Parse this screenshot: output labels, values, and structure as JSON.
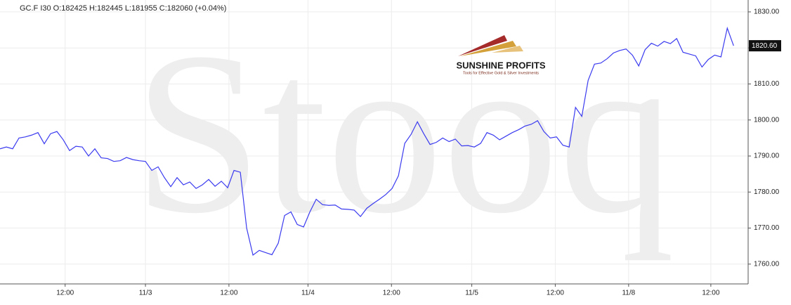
{
  "chart_data": {
    "type": "line",
    "title": "GC.F  I30  O:182425  H:182445  L:181955  C:182060  (+0.04%)",
    "watermark": "Stooq",
    "logo": {
      "name": "SUNSHINE PROFITS",
      "tagline": "Tools for Effective Gold & Silver Investments"
    },
    "series": [
      {
        "name": "GC.F",
        "color": "#3b3bf0",
        "values": [
          1792,
          1792.5,
          1792,
          1795,
          1795.3,
          1795.8,
          1796.5,
          1793.4,
          1796.2,
          1796.8,
          1794.5,
          1791.5,
          1792.7,
          1792.5,
          1790,
          1792,
          1789.5,
          1789.3,
          1788.5,
          1788.7,
          1789.6,
          1789,
          1788.7,
          1788.5,
          1786,
          1787,
          1784,
          1781.5,
          1784,
          1782,
          1782.8,
          1781,
          1782,
          1783.5,
          1781.6,
          1783,
          1781.2,
          1786,
          1785.5,
          1770,
          1762.5,
          1763.8,
          1763.2,
          1762.6,
          1765.8,
          1773.5,
          1774.5,
          1771,
          1770.3,
          1774.5,
          1778,
          1776.5,
          1776.3,
          1776.4,
          1775.3,
          1775.2,
          1775,
          1773.2,
          1775.5,
          1776.8,
          1778,
          1779.3,
          1781,
          1784.5,
          1793.5,
          1796,
          1799.5,
          1796.2,
          1793.2,
          1793.8,
          1795,
          1794,
          1794.7,
          1792.8,
          1792.9,
          1792.5,
          1793.5,
          1796.5,
          1795.8,
          1794.5,
          1795.5,
          1796.5,
          1797.3,
          1798.3,
          1798.8,
          1799.8,
          1796.8,
          1795,
          1795.3,
          1793,
          1792.5,
          1803.5,
          1801,
          1811,
          1815.5,
          1815.8,
          1817,
          1818.6,
          1819.3,
          1819.7,
          1818,
          1815,
          1819.5,
          1821.3,
          1820.5,
          1821.8,
          1821.2,
          1822.6,
          1818.8,
          1818.3,
          1817.8,
          1814.7,
          1816.8,
          1818,
          1817.5,
          1825.5,
          1820.6
        ]
      }
    ],
    "last_price": {
      "value": 1820.6,
      "label": "1820.60"
    },
    "xlim": [
      0,
      118.3
    ],
    "xticks": [
      {
        "value": 10.3,
        "label": "12:00"
      },
      {
        "value": 23,
        "label": "11/3"
      },
      {
        "value": 36.2,
        "label": "12:00"
      },
      {
        "value": 48.7,
        "label": "11/4"
      },
      {
        "value": 61.9,
        "label": "12:00"
      },
      {
        "value": 74.6,
        "label": "11/5"
      },
      {
        "value": 87.8,
        "label": "12:00"
      },
      {
        "value": 99.4,
        "label": "11/8"
      },
      {
        "value": 112.4,
        "label": "12:00"
      }
    ],
    "ylim": [
      1754.5,
      1833.3
    ],
    "yticks": [
      {
        "value": 1760,
        "label": "1760.00"
      },
      {
        "value": 1770,
        "label": "1770.00"
      },
      {
        "value": 1780,
        "label": "1780.00"
      },
      {
        "value": 1790,
        "label": "1790.00"
      },
      {
        "value": 1800,
        "label": "1800.00"
      },
      {
        "value": 1810,
        "label": "1810.00"
      },
      {
        "value": 1820,
        "label": "1820.00"
      },
      {
        "value": 1830,
        "label": "1830.00"
      }
    ],
    "grid": true
  }
}
